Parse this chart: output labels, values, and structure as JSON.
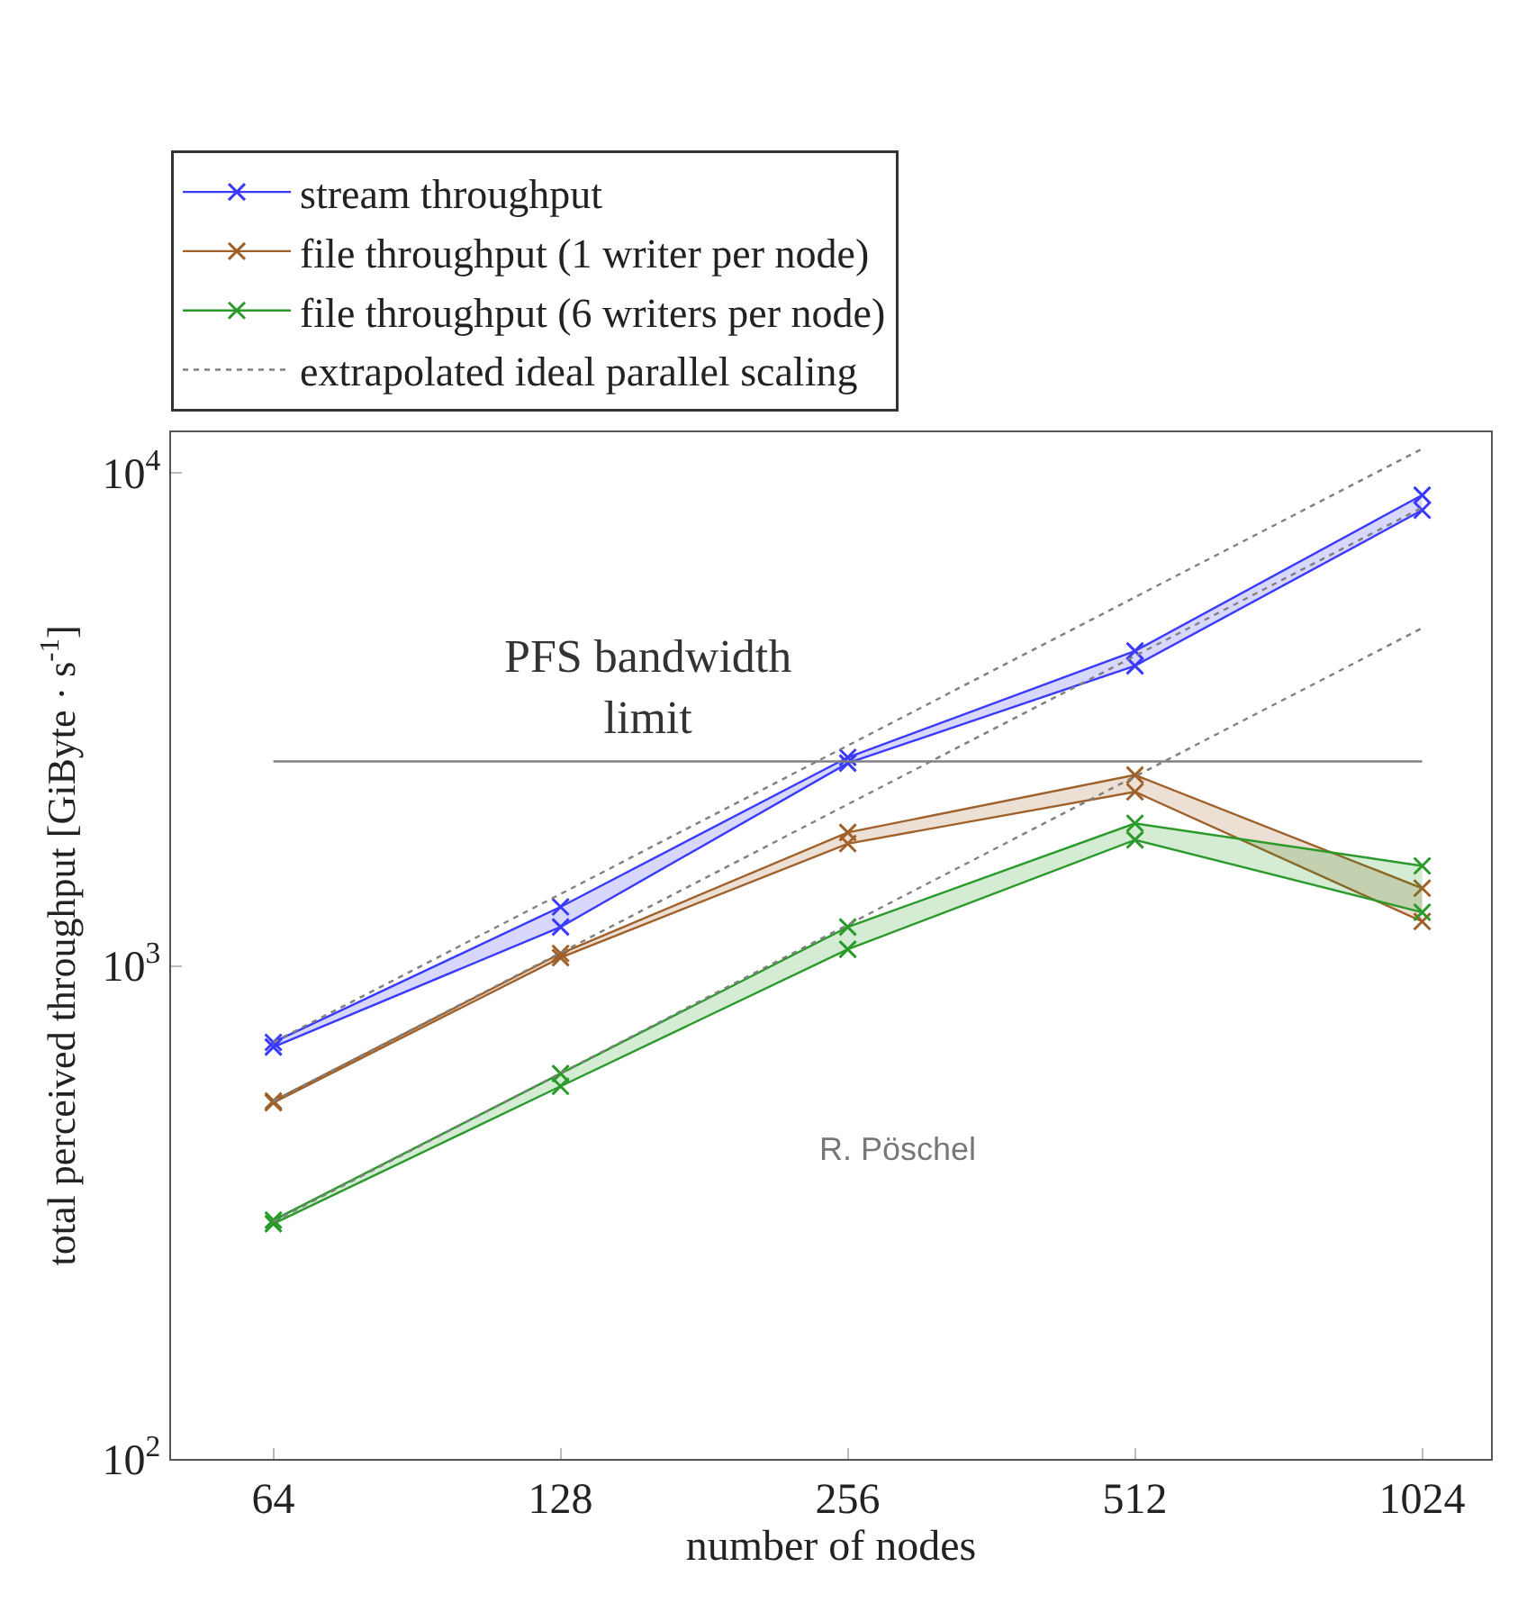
{
  "chart_data": {
    "type": "line",
    "xlabel": "number of nodes",
    "ylabel": "total perceived throughput [GiByte · s$^{-1}$]",
    "x": [
      64,
      128,
      256,
      512,
      1024
    ],
    "series": [
      {
        "name": "stream throughput",
        "color": "#3a3aff",
        "marker": "cross",
        "values": [
          700,
          1318,
          2650,
          4355,
          9020
        ],
        "lower": [
          685,
          1200,
          2580,
          4064,
          8410
        ],
        "upper": [
          700,
          1318,
          2650,
          4355,
          9020
        ]
      },
      {
        "color": "#3a3aff",
        "marker": "cross",
        "values": [
          685,
          1200,
          2580,
          4064,
          8410
        ]
      },
      {
        "name": "file throughput (1 writer per node)",
        "color": "#a0602a",
        "marker": "cross",
        "values": [
          532,
          1060,
          1866,
          2440,
          1438
        ],
        "lower": [
          528,
          1040,
          1771,
          2256,
          1231
        ],
        "upper": [
          532,
          1060,
          1866,
          2440,
          1438
        ]
      },
      {
        "color": "#a0602a",
        "marker": "cross",
        "values": [
          528,
          1040,
          1771,
          2256,
          1231
        ]
      },
      {
        "name": "file throughput (6 writers per node)",
        "color": "#2a9a2a",
        "marker": "cross",
        "values": [
          305,
          605,
          1200,
          1947,
          1596
        ],
        "lower": [
          300,
          570,
          1081,
          1802,
          1285
        ],
        "upper": [
          305,
          605,
          1200,
          1947,
          1596
        ]
      },
      {
        "color": "#2a9a2a",
        "marker": "cross",
        "values": [
          300,
          570,
          1081,
          1802,
          1285
        ]
      },
      {
        "name": "extrapolated ideal parallel scaling",
        "type": "line",
        "color": "#808080",
        "line_style": "dotted",
        "values": [
          700,
          1400,
          2800,
          5600,
          11200
        ]
      },
      {
        "type": "line",
        "color": "#808080",
        "line_style": "dotted",
        "values": [
          532,
          1064,
          2128,
          4256,
          8512
        ]
      },
      {
        "type": "line",
        "color": "#808080",
        "line_style": "dotted",
        "values": [
          303,
          606,
          1212,
          2424,
          4848
        ]
      }
    ],
    "line_style": "solid",
    "log": "xy",
    "xlim": [
      50,
      1209
    ],
    "xticks": [
      64,
      128,
      256,
      512,
      1024
    ],
    "ylim": [
      100,
      12100
    ],
    "yticks": [
      {
        "value": 100,
        "label": "10$^{2}$"
      },
      {
        "value": 1000,
        "label": "10$^{3}$"
      },
      {
        "value": 10000,
        "label": "10$^{4}$"
      }
    ],
    "ref_lines": [
      {
        "axis": "y",
        "value": 2600,
        "label": "PFS bandwidth\nlimit",
        "color": "#808080"
      }
    ],
    "annotations": [
      "R. Pöschel"
    ],
    "legend": "top"
  }
}
